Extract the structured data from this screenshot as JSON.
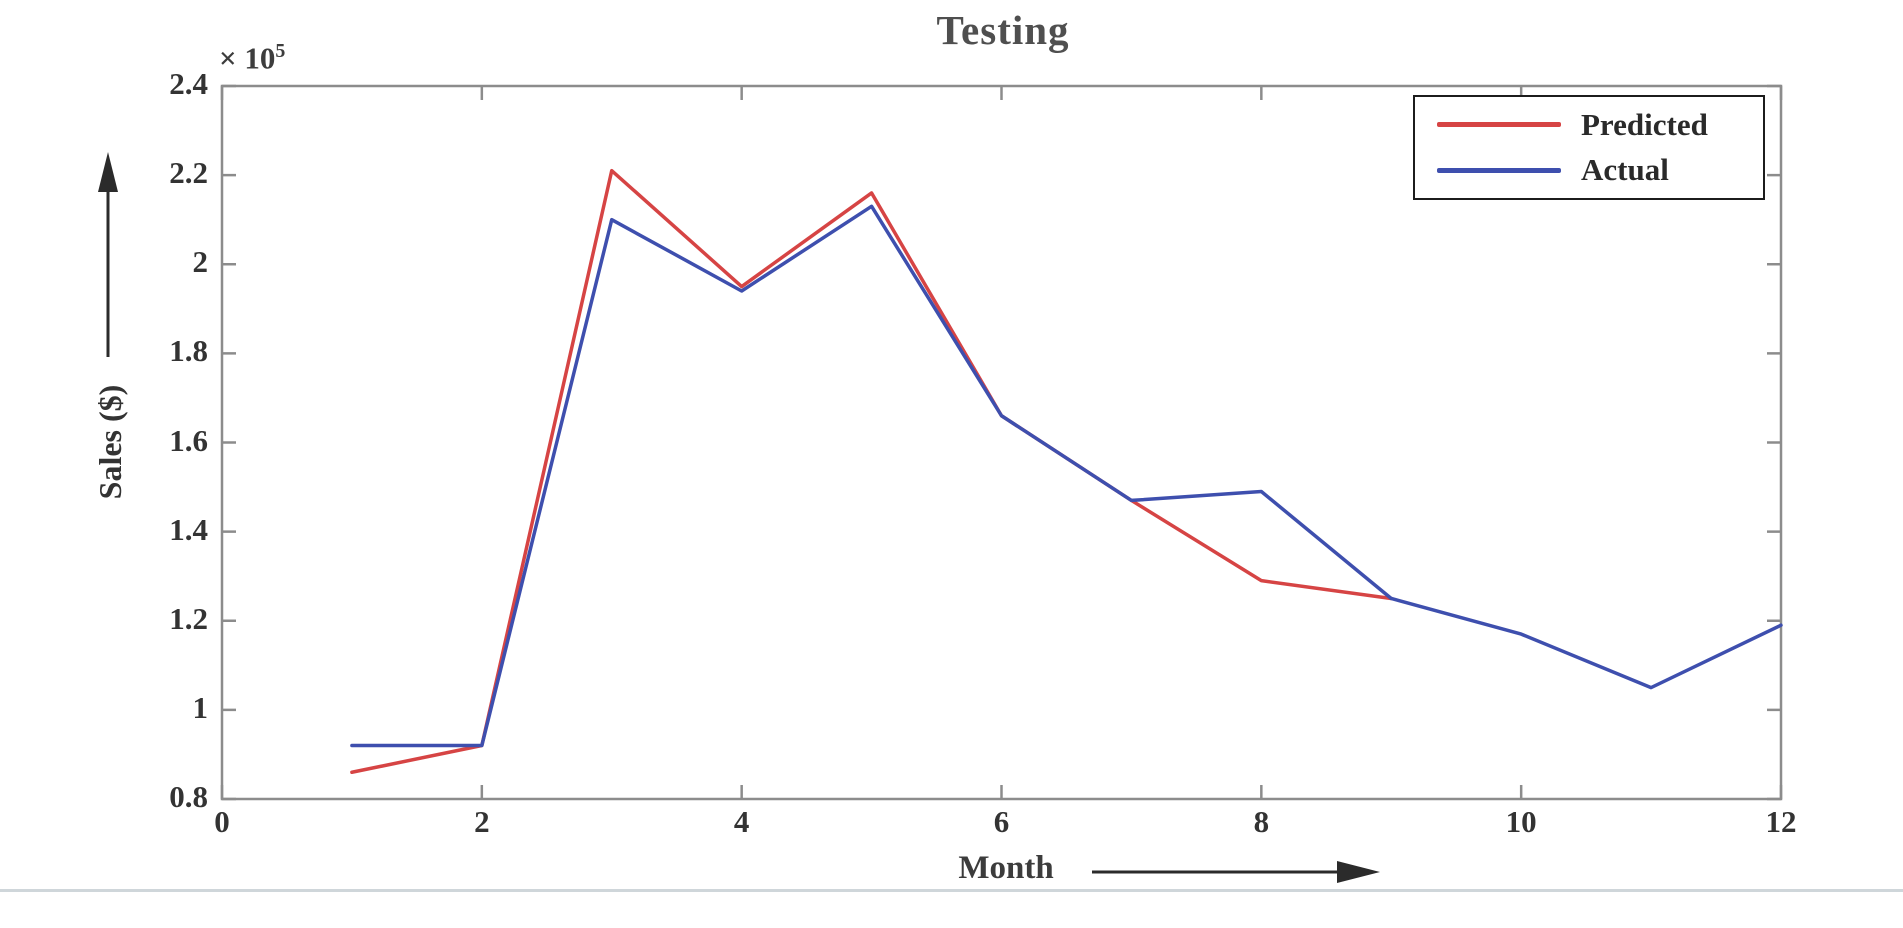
{
  "chart_data": {
    "type": "line",
    "title": "Testing",
    "xlabel": "Month",
    "ylabel": "Sales ($)",
    "y_axis_multiplier_base": "× 10",
    "y_axis_multiplier_exp": "5",
    "xlim": [
      0,
      12
    ],
    "ylim": [
      0.8,
      2.4
    ],
    "x_ticks": [
      0,
      2,
      4,
      6,
      8,
      10,
      12
    ],
    "x_tick_labels": [
      "0",
      "2",
      "4",
      "6",
      "8",
      "10",
      "12"
    ],
    "y_ticks": [
      0.8,
      1.0,
      1.2,
      1.4,
      1.6,
      1.8,
      2.0,
      2.2,
      2.4
    ],
    "y_tick_labels": [
      "0.8",
      "1",
      "1.2",
      "1.4",
      "1.6",
      "1.8",
      "2",
      "2.2",
      "2.4"
    ],
    "grid": false,
    "legend_position": "top-right",
    "axis_color": "#8c8c8c",
    "arrow_color": "#2b2b2b",
    "series": [
      {
        "name": "Predicted",
        "color": "#d64444",
        "x": [
          1,
          2,
          3,
          4,
          5,
          6,
          7,
          8,
          9
        ],
        "values": [
          0.86,
          0.92,
          2.21,
          1.95,
          2.16,
          1.66,
          1.47,
          1.29,
          1.25
        ]
      },
      {
        "name": "Actual",
        "color": "#3e4fae",
        "x": [
          1,
          2,
          3,
          4,
          5,
          6,
          7,
          8,
          9,
          10,
          11,
          12
        ],
        "values": [
          0.92,
          0.92,
          2.1,
          1.94,
          2.13,
          1.66,
          1.47,
          1.49,
          1.25,
          1.17,
          1.05,
          1.19
        ]
      }
    ]
  }
}
